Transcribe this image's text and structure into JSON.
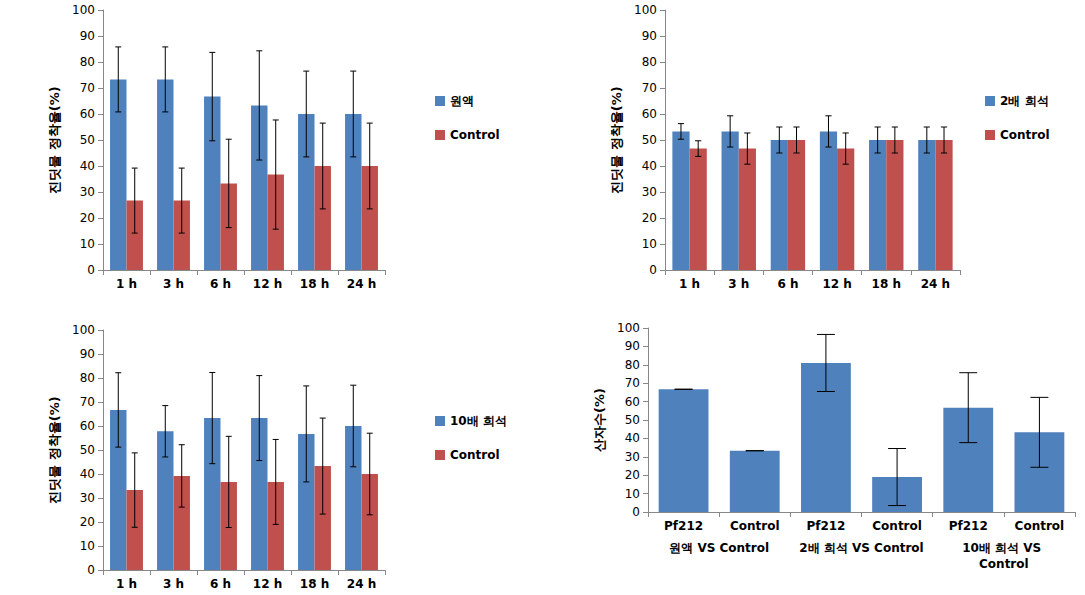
{
  "chart_data": [
    {
      "type": "bar",
      "y_label": "진딧물 정착율(%)",
      "categories": [
        "1 h",
        "3 h",
        "6 h",
        "12 h",
        "18 h",
        "24 h"
      ],
      "series": [
        {
          "name": "원액",
          "color": "#4f81bd",
          "values": [
            73.3,
            73.3,
            66.7,
            63.3,
            60,
            60
          ],
          "errors": [
            12.5,
            12.5,
            17,
            21,
            16.5,
            16.5
          ]
        },
        {
          "name": "Control",
          "color": "#c0504d",
          "values": [
            26.7,
            26.7,
            33.3,
            36.7,
            40,
            40
          ],
          "errors": [
            12.5,
            12.5,
            17,
            21,
            16.5,
            16.5
          ]
        }
      ],
      "ylim": [
        0,
        100
      ],
      "yticks": [
        0,
        10,
        20,
        30,
        40,
        50,
        60,
        70,
        80,
        90,
        100
      ],
      "grid": false,
      "legend": "right"
    },
    {
      "type": "bar",
      "y_label": "진딧물 정착율(%)",
      "categories": [
        "1 h",
        "3 h",
        "6 h",
        "12 h",
        "18 h",
        "24 h"
      ],
      "series": [
        {
          "name": "2배 희석",
          "color": "#4f81bd",
          "values": [
            53.3,
            53.3,
            50,
            53.3,
            50,
            50
          ],
          "errors": [
            3,
            6,
            5,
            6,
            5,
            5
          ]
        },
        {
          "name": "Control",
          "color": "#c0504d",
          "values": [
            46.7,
            46.7,
            50,
            46.7,
            50,
            50
          ],
          "errors": [
            3,
            6,
            5,
            6,
            5,
            5
          ]
        }
      ],
      "ylim": [
        0,
        100
      ],
      "yticks": [
        0,
        10,
        20,
        30,
        40,
        50,
        60,
        70,
        80,
        90,
        100
      ],
      "grid": false,
      "legend": "right"
    },
    {
      "type": "bar",
      "y_label": "진딧물 정착율(%)",
      "categories": [
        "1 h",
        "3 h",
        "6 h",
        "12 h",
        "18 h",
        "24 h"
      ],
      "series": [
        {
          "name": "10배 희석",
          "color": "#4f81bd",
          "values": [
            66.7,
            57.8,
            63.3,
            63.3,
            56.7,
            60
          ],
          "errors": [
            15.5,
            10.7,
            19,
            17.7,
            20,
            17
          ]
        },
        {
          "name": "Control",
          "color": "#c0504d",
          "values": [
            33.3,
            39.2,
            36.7,
            36.7,
            43.3,
            40
          ],
          "errors": [
            15.5,
            13,
            19,
            17.7,
            20,
            17
          ]
        }
      ],
      "ylim": [
        0,
        100
      ],
      "yticks": [
        0,
        10,
        20,
        30,
        40,
        50,
        60,
        70,
        80,
        90,
        100
      ],
      "grid": false,
      "legend": "right"
    },
    {
      "type": "bar",
      "y_label": "산자수(%)",
      "categories": [
        "Pf212",
        "Control",
        "Pf212",
        "Control",
        "Pf212",
        "Control"
      ],
      "groups": [
        "원액 VS Control",
        "2배 희석 VS Control",
        "10배 희석 VS Control"
      ],
      "series": [
        {
          "color": "#4f81bd",
          "values": [
            66.7,
            33.3,
            81,
            19,
            56.7,
            43.3
          ],
          "errors": [
            0,
            0,
            15.5,
            15.5,
            19,
            19
          ]
        }
      ],
      "ylim": [
        0,
        100
      ],
      "yticks": [
        0,
        10,
        20,
        30,
        40,
        50,
        60,
        70,
        80,
        90,
        100
      ],
      "grid": false
    }
  ]
}
